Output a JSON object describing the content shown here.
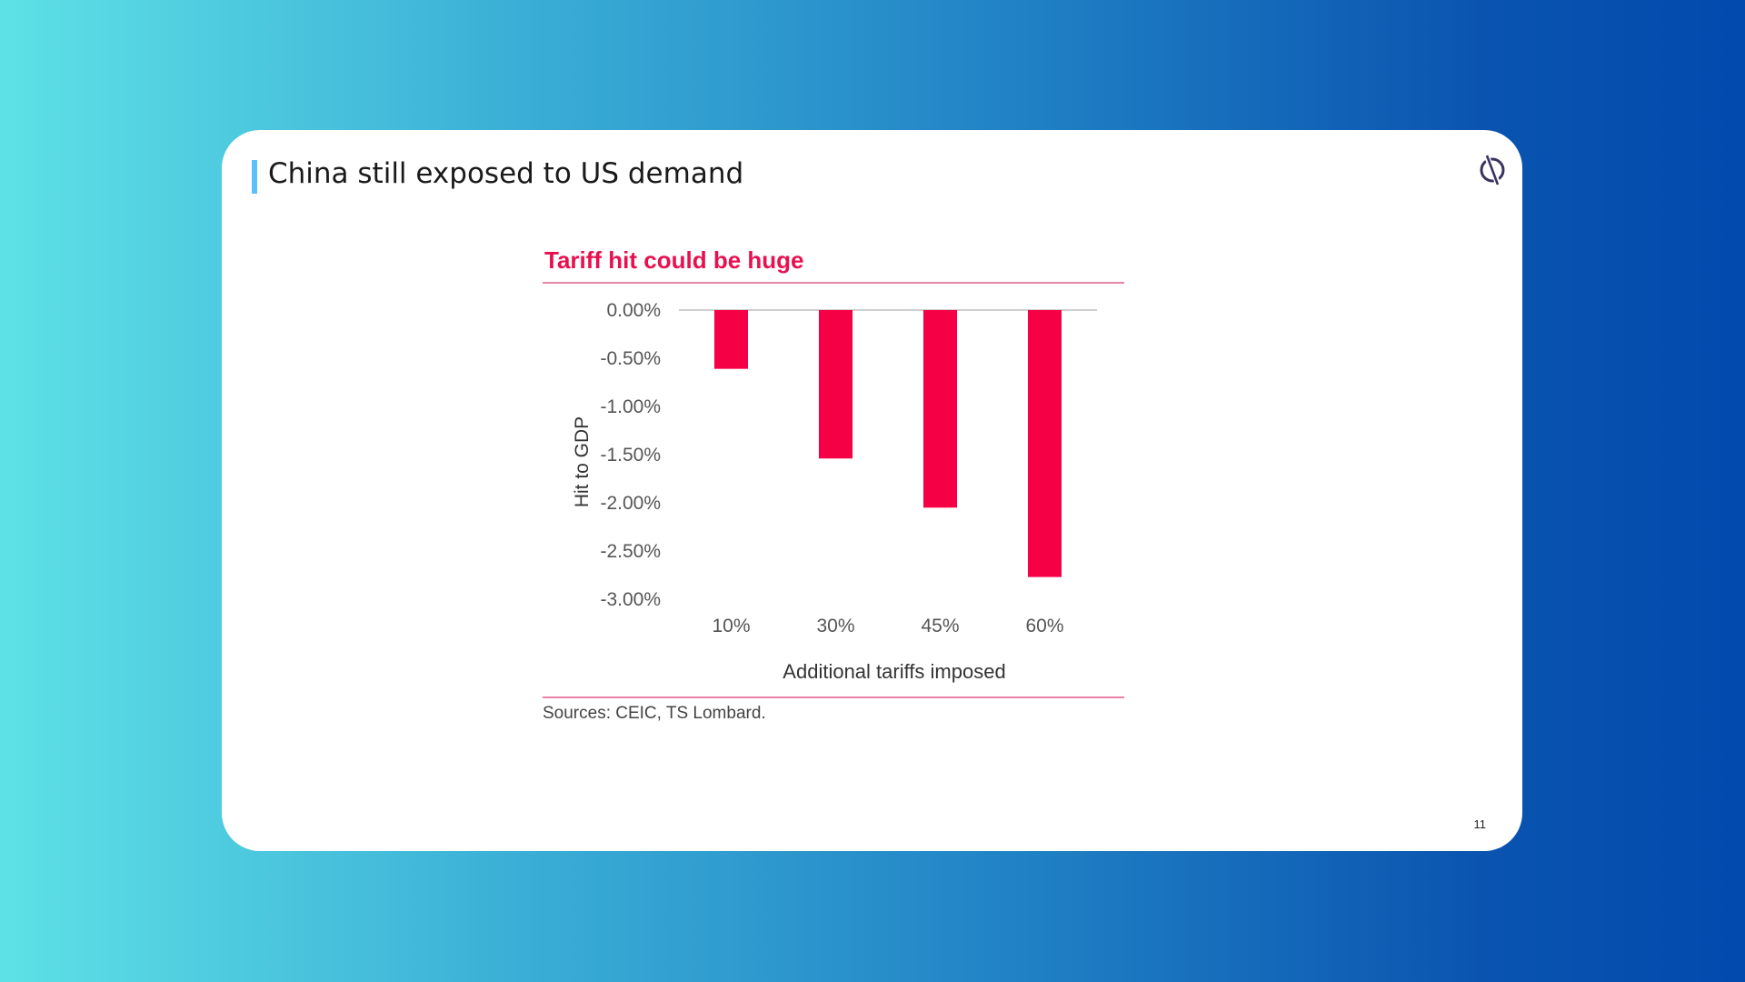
{
  "slide": {
    "title": "China still exposed to US demand",
    "page_number": "11",
    "sources": "Sources: CEIC, TS Lombard."
  },
  "icons": {
    "logo": "circle-slash-logo-icon"
  },
  "colors": {
    "bar": "#f50045",
    "chart_title": "#e8104f",
    "title_accent": "#5bc0f5",
    "rule": "#e35c86"
  },
  "chart_data": {
    "type": "bar",
    "title": "Tariff hit could be huge",
    "xlabel": "Additional tariffs imposed",
    "ylabel": "Hit to GDP",
    "categories": [
      "10%",
      "30%",
      "45%",
      "60%"
    ],
    "values": [
      -0.61,
      -1.54,
      -2.05,
      -2.77
    ],
    "ylim": [
      -3.0,
      0.0
    ],
    "yticks": [
      0.0,
      -0.5,
      -1.0,
      -1.5,
      -2.0,
      -2.5,
      -3.0
    ],
    "ytick_labels": [
      "0.00%",
      "-0.50%",
      "-1.00%",
      "-1.50%",
      "-2.00%",
      "-2.50%",
      "-3.00%"
    ],
    "grid": false,
    "legend": "none"
  }
}
